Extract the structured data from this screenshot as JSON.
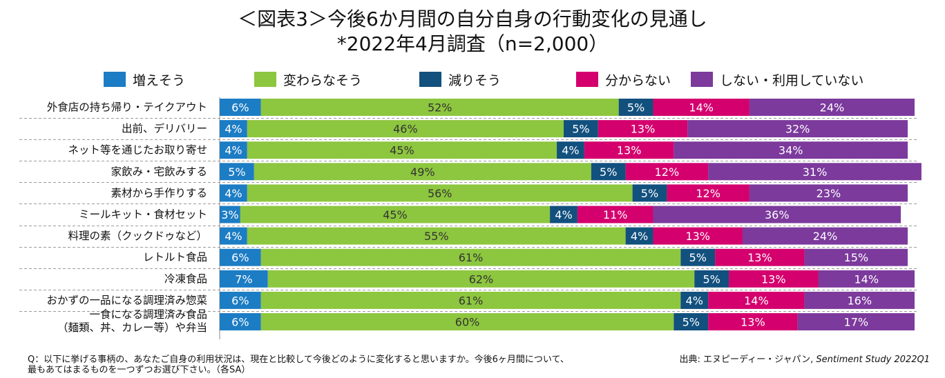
{
  "title_line1": "＜図表3＞今後6か月間の自分自身の行動変化の見通し",
  "title_line2": "*2022年4月調査（n=2,000）",
  "legend": [
    {
      "label": "増えそう",
      "color": "#1C7CC4"
    },
    {
      "label": "変わらなそう",
      "color": "#8DC63F"
    },
    {
      "label": "減りそう",
      "color": "#12507E"
    },
    {
      "label": "分からない",
      "color": "#D4006E"
    },
    {
      "label": "しない・利用していない",
      "color": "#7C3A9C"
    }
  ],
  "chart_data": {
    "type": "bar",
    "orientation": "horizontal",
    "stacked": true,
    "percent_scale": true,
    "grid": false,
    "legend_position": "top",
    "categories": [
      [
        "外食店の持ち帰り・テイクアウト"
      ],
      [
        "出前、デリバリー"
      ],
      [
        "ネット等を通じたお取り寄せ"
      ],
      [
        "家飲み・宅飲みする"
      ],
      [
        "素材から手作りする"
      ],
      [
        "ミールキット・食材セット"
      ],
      [
        "料理の素（クックドゥなど）"
      ],
      [
        "レトルト食品"
      ],
      [
        "冷凍食品"
      ],
      [
        "おかずの一品になる調理済み惣菜"
      ],
      [
        "一食になる調理済み食品",
        "（麺類、丼、カレー等）や弁当"
      ]
    ],
    "series": [
      {
        "name": "増えそう",
        "color": "#1C7CC4",
        "label_color": "#ffffff",
        "values": [
          6,
          4,
          4,
          5,
          4,
          3,
          4,
          6,
          7,
          6,
          6
        ]
      },
      {
        "name": "変わらなそう",
        "color": "#8DC63F",
        "label_color": "#333333",
        "values": [
          52,
          46,
          45,
          49,
          56,
          45,
          55,
          61,
          62,
          61,
          60
        ]
      },
      {
        "name": "減りそう",
        "color": "#12507E",
        "label_color": "#ffffff",
        "values": [
          5,
          5,
          4,
          5,
          5,
          4,
          4,
          5,
          5,
          4,
          5
        ]
      },
      {
        "name": "分からない",
        "color": "#D4006E",
        "label_color": "#ffffff",
        "values": [
          14,
          13,
          13,
          12,
          12,
          11,
          13,
          13,
          13,
          14,
          13
        ]
      },
      {
        "name": "しない・利用していない",
        "color": "#7C3A9C",
        "label_color": "#ffffff",
        "values": [
          24,
          32,
          34,
          31,
          23,
          36,
          24,
          15,
          14,
          16,
          17
        ]
      }
    ],
    "value_suffix": "%"
  },
  "footnote_line1": "Q：以下に挙げる事柄の、あなたご自身の利用状況は、現在と比較して今後どのように変化すると思いますか。今後6ヶ月間について、",
  "footnote_line2": "最もあてはまるものを一つずつお選び下さい。（各SA）",
  "source_prefix": "出典: エヌピーディー・ジャパン,",
  "source_study": " Sentiment Study 2022Q1"
}
